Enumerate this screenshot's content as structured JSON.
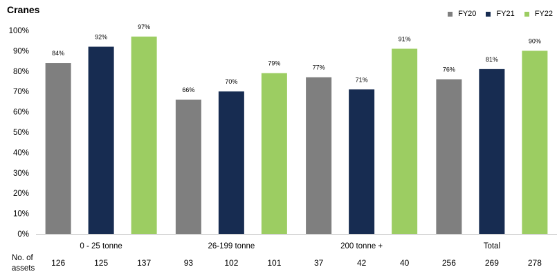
{
  "chart_data": {
    "type": "bar",
    "title": "Cranes",
    "categories": [
      "0 - 25 tonne",
      "26-199 tonne",
      "200 tonne +",
      "Total"
    ],
    "series": [
      {
        "name": "FY20",
        "color": "#7f7f7f",
        "values": [
          84,
          66,
          77,
          76
        ],
        "labels": [
          "84%",
          "66%",
          "77%",
          "76%"
        ]
      },
      {
        "name": "FY21",
        "color": "#172c51",
        "values": [
          92,
          70,
          71,
          81
        ],
        "labels": [
          "92%",
          "70%",
          "71%",
          "81%"
        ]
      },
      {
        "name": "FY22",
        "color": "#9ccd62",
        "values": [
          97,
          79,
          91,
          90
        ],
        "labels": [
          "97%",
          "79%",
          "91%",
          "90%"
        ]
      }
    ],
    "yticks": [
      "0%",
      "10%",
      "20%",
      "30%",
      "40%",
      "50%",
      "60%",
      "70%",
      "80%",
      "90%",
      "100%"
    ],
    "ylim": [
      0,
      100
    ],
    "grid": false,
    "legend_position": "top-right"
  },
  "assets": {
    "label_line1": "No. of",
    "label_line2": "assets",
    "counts": [
      [
        "126",
        "125",
        "137"
      ],
      [
        "93",
        "102",
        "101"
      ],
      [
        "37",
        "42",
        "40"
      ],
      [
        "256",
        "269",
        "278"
      ]
    ]
  }
}
